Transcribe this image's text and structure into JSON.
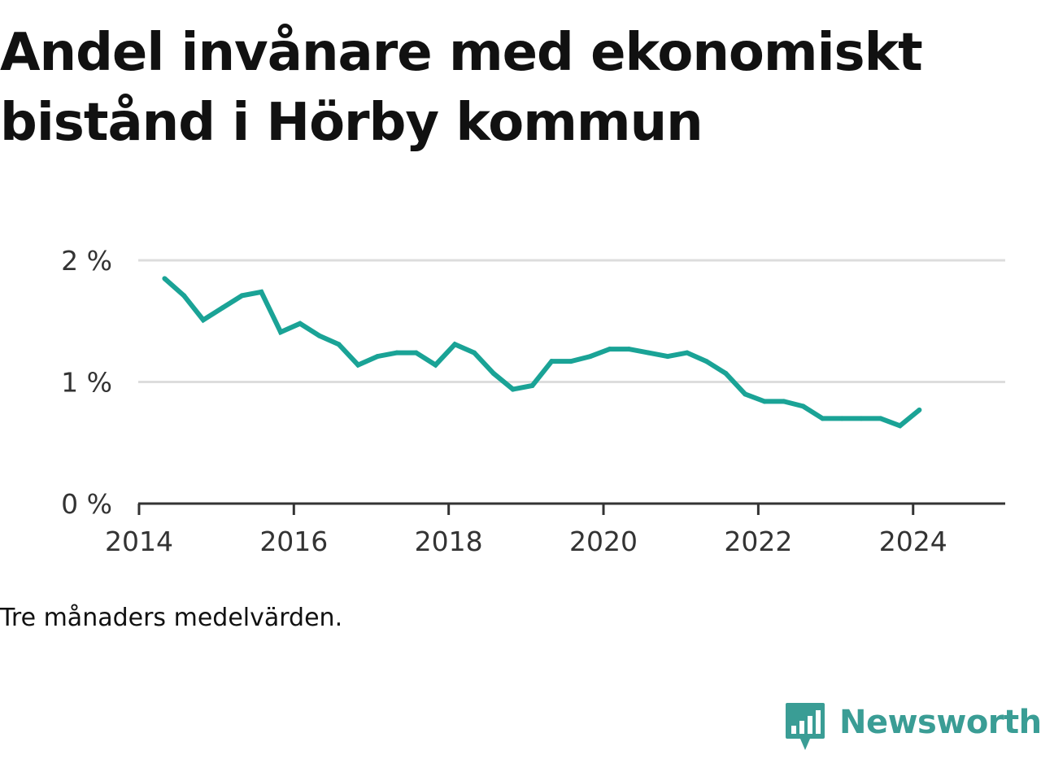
{
  "title": "Andel invånare med ekonomiskt bistånd i Hörby kommun",
  "caption": "Tre månaders medelvärden.",
  "brand": {
    "name": "Newsworthy",
    "logo_icon": "bar-chart-speech-bubble-icon"
  },
  "colors": {
    "line": "#1aa396",
    "grid": "#dddddd",
    "axis": "#333333",
    "brand": "#3a9d95"
  },
  "chart_data": {
    "type": "line",
    "title": "Andel invånare med ekonomiskt bistånd i Hörby kommun",
    "xlabel": "",
    "ylabel": "",
    "xlim": [
      2013.99,
      2025.19
    ],
    "ylim": [
      0,
      2
    ],
    "xticks": [
      {
        "value": 2014,
        "label": "2014"
      },
      {
        "value": 2016,
        "label": "2016"
      },
      {
        "value": 2018,
        "label": "2018"
      },
      {
        "value": 2020,
        "label": "2020"
      },
      {
        "value": 2022,
        "label": "2022"
      },
      {
        "value": 2024,
        "label": "2024"
      }
    ],
    "yticks": [
      {
        "value": 0,
        "label": "0 %"
      },
      {
        "value": 1,
        "label": "1 %"
      },
      {
        "value": 2,
        "label": "2 %"
      }
    ],
    "grid": true,
    "legend": "none",
    "series": [
      {
        "x": [
          2014.33,
          2014.58,
          2014.83,
          2015.08,
          2015.33,
          2015.58,
          2015.83,
          2016.08,
          2016.33,
          2016.58,
          2016.83,
          2017.08,
          2017.33,
          2017.58,
          2017.83,
          2018.08,
          2018.33,
          2018.58,
          2018.83,
          2019.08,
          2019.33,
          2019.58,
          2019.83,
          2020.08,
          2020.33,
          2020.58,
          2020.83,
          2021.08,
          2021.33,
          2021.58,
          2021.83,
          2022.08,
          2022.33,
          2022.58,
          2022.83,
          2023.08,
          2023.33,
          2023.58,
          2023.83,
          2024.08
        ],
        "values": [
          1.85,
          1.71,
          1.51,
          1.61,
          1.71,
          1.74,
          1.41,
          1.48,
          1.38,
          1.31,
          1.14,
          1.21,
          1.24,
          1.24,
          1.14,
          1.31,
          1.24,
          1.07,
          0.94,
          0.97,
          1.17,
          1.17,
          1.21,
          1.27,
          1.27,
          1.24,
          1.21,
          1.24,
          1.17,
          1.07,
          0.9,
          0.84,
          0.84,
          0.8,
          0.7,
          0.7,
          0.7,
          0.7,
          0.64,
          0.77
        ]
      }
    ]
  }
}
